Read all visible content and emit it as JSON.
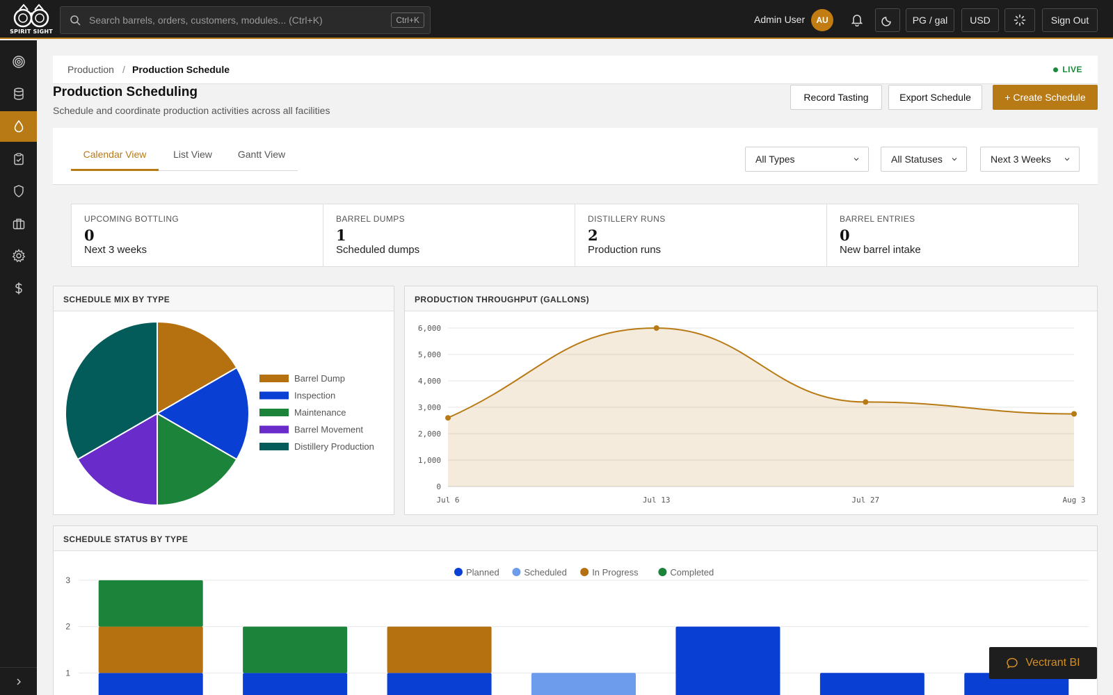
{
  "app": {
    "logo_text": "SPIRIT SIGHT",
    "search_placeholder": "Search barrels, orders, customers, modules... (Ctrl+K)",
    "search_shortcut": "Ctrl+K",
    "user_name": "Admin User",
    "user_initials": "AU",
    "unit_label": "PG / gal",
    "currency_label": "USD",
    "signout_label": "Sign Out"
  },
  "sidebar": {
    "items": [
      {
        "icon": "target-icon"
      },
      {
        "icon": "database-icon"
      },
      {
        "icon": "droplet-icon",
        "active": true
      },
      {
        "icon": "clipboard-check-icon"
      },
      {
        "icon": "shield-icon"
      },
      {
        "icon": "briefcase-icon"
      },
      {
        "icon": "gear-icon"
      },
      {
        "icon": "dollar-icon"
      }
    ]
  },
  "breadcrumb": {
    "parent": "Production",
    "separator": "/",
    "current": "Production Schedule",
    "live": "LIVE"
  },
  "header": {
    "title": "Production Scheduling",
    "subtitle": "Schedule and coordinate production activities across all facilities",
    "record_tasting": "Record Tasting",
    "export_schedule": "Export Schedule",
    "create_schedule": "+ Create Schedule"
  },
  "tabs": [
    "Calendar View",
    "List View",
    "Gantt View"
  ],
  "filters": {
    "type": "All Types",
    "status": "All Statuses",
    "range": "Next 3 Weeks"
  },
  "stats": [
    {
      "label": "UPCOMING BOTTLING",
      "value": "0",
      "sub": "Next 3 weeks"
    },
    {
      "label": "BARREL DUMPS",
      "value": "1",
      "sub": "Scheduled dumps"
    },
    {
      "label": "DISTILLERY RUNS",
      "value": "2",
      "sub": "Production runs"
    },
    {
      "label": "BARREL ENTRIES",
      "value": "0",
      "sub": "New barrel intake"
    }
  ],
  "colors": {
    "accent": "#b87a14",
    "barrel_dump": "#b5700f",
    "inspection": "#0a3fd4",
    "maintenance": "#1b843a",
    "barrel_movement": "#6a2bcb",
    "distillery_production": "#045c5a",
    "planned": "#0a3fd4",
    "scheduled": "#6d9cec",
    "in_progress": "#b5700f",
    "completed": "#1b843a"
  },
  "chart_data": [
    {
      "type": "pie",
      "title": "SCHEDULE MIX BY TYPE",
      "categories": [
        "Barrel Dump",
        "Inspection",
        "Maintenance",
        "Barrel Movement",
        "Distillery Production"
      ],
      "values": [
        1,
        1,
        1,
        1,
        2
      ],
      "legend": "right"
    },
    {
      "type": "area",
      "title": "PRODUCTION THROUGHPUT (GALLONS)",
      "x": [
        "Jul 6",
        "Jul 13",
        "Jul 27",
        "Aug 3"
      ],
      "values": [
        2600,
        6000,
        3200,
        2750
      ],
      "ylim": [
        0,
        6000
      ],
      "yticks": [
        "0",
        "1,000",
        "2,000",
        "3,000",
        "4,000",
        "5,000",
        "6,000"
      ],
      "grid": true
    },
    {
      "type": "bar",
      "stacked": true,
      "title": "SCHEDULE STATUS BY TYPE",
      "yticks": [
        "1",
        "2",
        "3"
      ],
      "legend": "top",
      "series": [
        {
          "name": "Planned",
          "values": [
            1,
            1,
            1,
            0,
            2,
            1,
            1
          ]
        },
        {
          "name": "Scheduled",
          "values": [
            0,
            0,
            0,
            1,
            0,
            0,
            0
          ]
        },
        {
          "name": "In Progress",
          "values": [
            1,
            0,
            1,
            0,
            0,
            0,
            0
          ]
        },
        {
          "name": "Completed",
          "values": [
            1,
            1,
            0,
            0,
            0,
            0,
            0
          ]
        }
      ]
    }
  ],
  "vectrant_label": "Vectrant BI"
}
